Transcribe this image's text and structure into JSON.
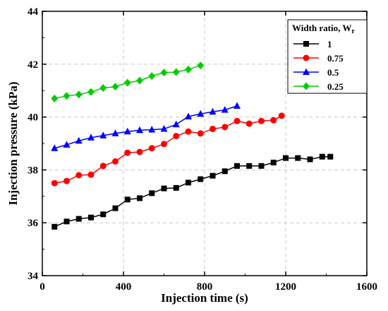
{
  "chart_data": {
    "type": "line",
    "xlabel": "Injection time (s)",
    "ylabel": "Injection pressure (kPa)",
    "xlim": [
      0,
      1600
    ],
    "ylim": [
      34,
      44
    ],
    "xticks": [
      0,
      400,
      800,
      1200,
      1600
    ],
    "yticks": [
      34,
      36,
      38,
      40,
      42,
      44
    ],
    "grid": true,
    "legend": {
      "title": "Width ratio, W",
      "title_subscript": "r",
      "placement": "top-right"
    },
    "series": [
      {
        "name": "1",
        "color": "#000000",
        "marker": "square",
        "x": [
          60,
          120,
          180,
          240,
          300,
          360,
          420,
          480,
          540,
          600,
          660,
          720,
          780,
          840,
          900,
          960,
          1020,
          1080,
          1140,
          1200,
          1260,
          1320,
          1380,
          1420
        ],
        "y": [
          35.85,
          36.05,
          36.15,
          36.2,
          36.32,
          36.55,
          36.88,
          36.93,
          37.12,
          37.3,
          37.32,
          37.52,
          37.65,
          37.78,
          37.95,
          38.15,
          38.15,
          38.15,
          38.28,
          38.45,
          38.45,
          38.4,
          38.5,
          38.5
        ]
      },
      {
        "name": "0.75",
        "color": "#ff0000",
        "marker": "circle",
        "x": [
          60,
          120,
          180,
          240,
          300,
          360,
          420,
          480,
          540,
          600,
          660,
          720,
          780,
          840,
          900,
          960,
          1020,
          1080,
          1140,
          1180
        ],
        "y": [
          37.5,
          37.58,
          37.8,
          37.82,
          38.15,
          38.32,
          38.65,
          38.68,
          38.82,
          38.98,
          39.28,
          39.45,
          39.38,
          39.55,
          39.62,
          39.85,
          39.75,
          39.85,
          39.88,
          40.05
        ]
      },
      {
        "name": "0.5",
        "color": "#0000ff",
        "marker": "triangle",
        "x": [
          60,
          120,
          180,
          240,
          300,
          360,
          420,
          480,
          540,
          600,
          660,
          720,
          780,
          840,
          900,
          960
        ],
        "y": [
          38.82,
          38.95,
          39.1,
          39.22,
          39.3,
          39.38,
          39.45,
          39.5,
          39.52,
          39.55,
          39.72,
          40.02,
          40.12,
          40.2,
          40.27,
          40.42
        ]
      },
      {
        "name": "0.25",
        "color": "#00cc00",
        "marker": "diamond",
        "x": [
          60,
          120,
          180,
          240,
          300,
          360,
          420,
          480,
          540,
          600,
          660,
          720,
          780
        ],
        "y": [
          40.7,
          40.8,
          40.85,
          40.95,
          41.1,
          41.15,
          41.3,
          41.38,
          41.55,
          41.68,
          41.7,
          41.8,
          41.95
        ]
      }
    ]
  }
}
